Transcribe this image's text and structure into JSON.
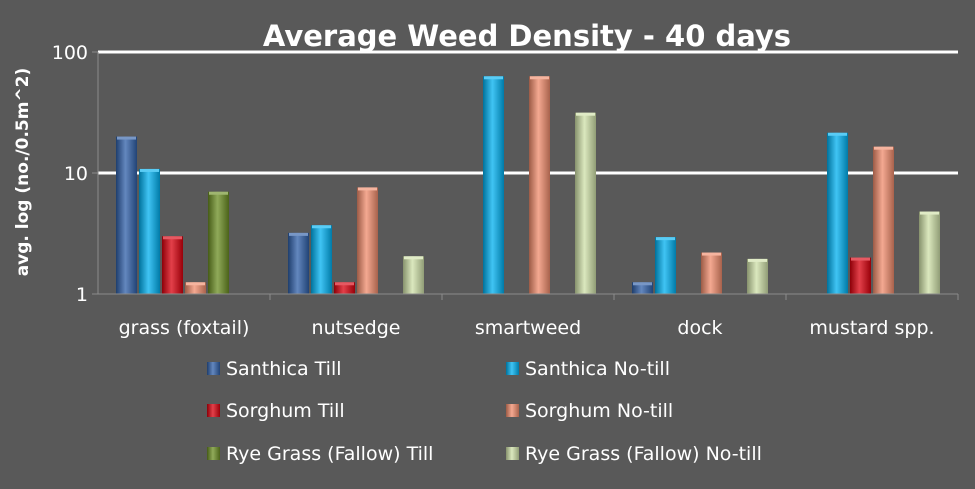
{
  "chart_data": {
    "type": "bar",
    "title": "Average Weed Density - 40 days",
    "ylabel": "avg. log (no./0.5m^2)",
    "xlabel": "",
    "yscale": "log",
    "ylim": [
      1,
      100
    ],
    "yticks": [
      {
        "value": 1,
        "label": "1"
      },
      {
        "value": 10,
        "label": "10"
      },
      {
        "value": 100,
        "label": "100"
      }
    ],
    "grid": true,
    "legend_position": "bottom",
    "categories": [
      "grass (foxtail)",
      "nutsedge",
      "smartweed",
      "dock",
      "mustard spp."
    ],
    "series": [
      {
        "name": "Santhica Till",
        "color": "#2f5fa8",
        "values": [
          20,
          3.2,
          null,
          1.25,
          null
        ]
      },
      {
        "name": "Santhica No-till",
        "color": "#00b0f0",
        "values": [
          10.8,
          3.7,
          63,
          2.95,
          21.5
        ]
      },
      {
        "name": "Sorghum Till",
        "color": "#d9000d",
        "values": [
          3.0,
          1.25,
          null,
          null,
          2.0
        ]
      },
      {
        "name": "Sorghum No-till",
        "color": "#f08c6c",
        "values": [
          1.25,
          7.6,
          63,
          2.2,
          16.5
        ]
      },
      {
        "name": "Rye Grass (Fallow) Till",
        "color": "#6b8e23",
        "values": [
          7.0,
          null,
          null,
          null,
          null
        ]
      },
      {
        "name": "Rye Grass (Fallow) No-till",
        "color": "#cfe0a8",
        "values": [
          null,
          2.05,
          31.5,
          1.95,
          4.8
        ]
      }
    ]
  }
}
